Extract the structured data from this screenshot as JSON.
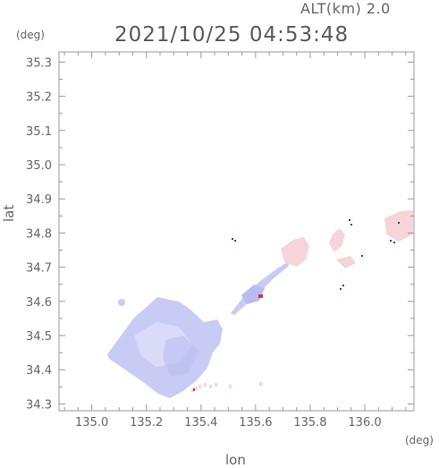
{
  "header": {
    "altitude_label": "ALT(km) 2.0",
    "timestamp": "2021/10/25 04:53:48"
  },
  "axes": {
    "x_label": "lon",
    "y_label": "lat",
    "x_unit": "(deg)",
    "y_unit": "(deg)",
    "x_ticks": [
      "135.0",
      "135.2",
      "135.4",
      "135.6",
      "135.8",
      "136.0"
    ],
    "y_ticks": [
      "34.3",
      "34.4",
      "34.5",
      "34.6",
      "34.7",
      "34.8",
      "34.9",
      "35.0",
      "35.1",
      "35.2",
      "35.3"
    ],
    "x_range": [
      134.88,
      136.18
    ],
    "y_range": [
      34.28,
      35.33
    ]
  },
  "colors": {
    "frame": "#9a9a9a",
    "echo_weak_blue": "#c8ccf4",
    "echo_blue_light": "#dfe1fa",
    "echo_pink": "#f6d4d8",
    "echo_red": "#e03040",
    "echo_blue_dark": "#3838d0"
  }
}
